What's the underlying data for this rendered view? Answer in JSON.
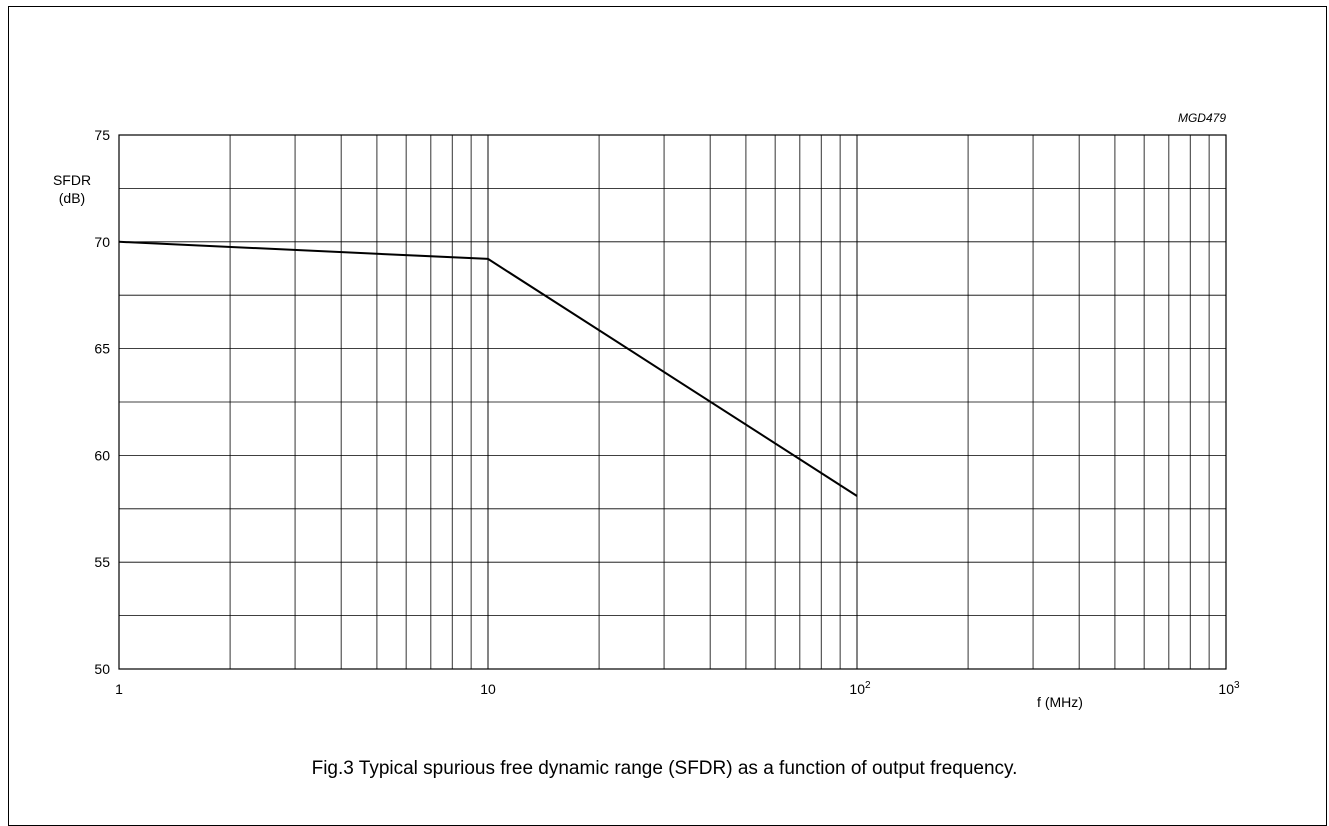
{
  "chart_data": {
    "type": "line",
    "figure_id": "MGD479",
    "title": "Fig.3  Typical spurious free dynamic range (SFDR) as a function of output frequency.",
    "ylabel_line1": "SFDR",
    "ylabel_line2": "(dB)",
    "xlabel": "f (MHz)",
    "x_scale": "log",
    "xlim": [
      1,
      1000
    ],
    "ylim": [
      50,
      75
    ],
    "grid": true,
    "x_ticks": [
      {
        "value": 1,
        "base": "1",
        "exp": ""
      },
      {
        "value": 10,
        "base": "10",
        "exp": ""
      },
      {
        "value": 100,
        "base": "10",
        "exp": "2"
      },
      {
        "value": 1000,
        "base": "10",
        "exp": "3"
      }
    ],
    "y_ticks": [
      50,
      55,
      60,
      65,
      70,
      75
    ],
    "y_minor_grid": [
      52.5,
      57.5,
      62.5,
      67.5,
      72.5
    ],
    "series": [
      {
        "x": [
          1,
          10,
          100
        ],
        "y": [
          70,
          69.2,
          58.1
        ]
      }
    ]
  }
}
